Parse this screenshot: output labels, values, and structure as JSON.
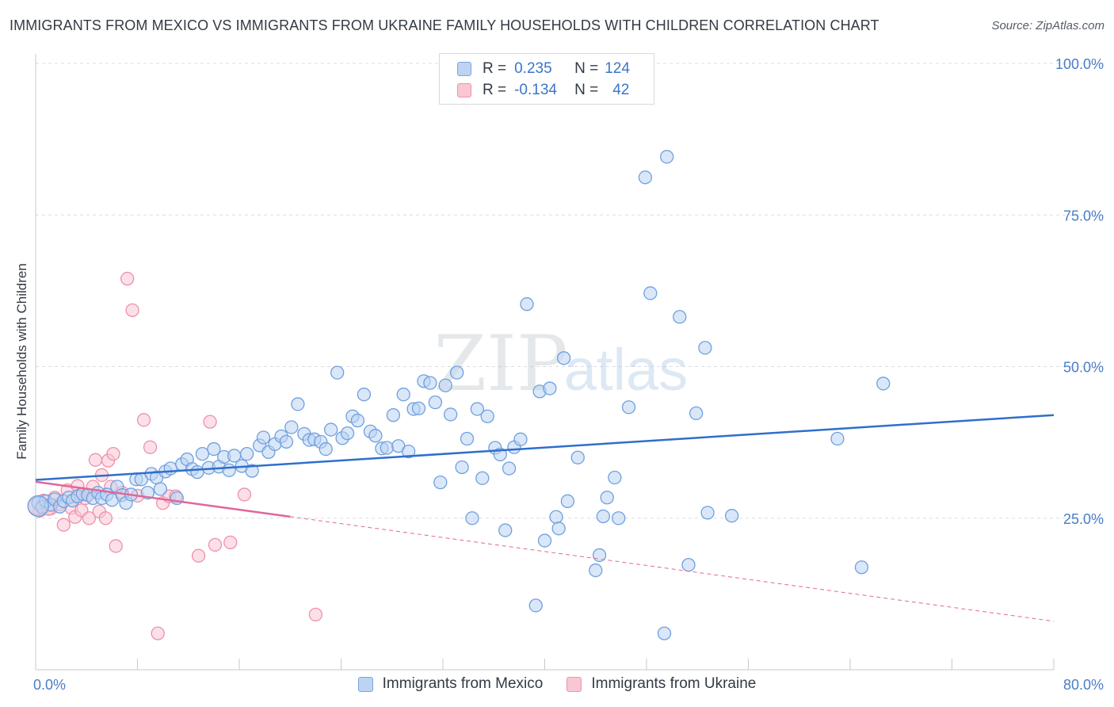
{
  "title": "IMMIGRANTS FROM MEXICO VS IMMIGRANTS FROM UKRAINE FAMILY HOUSEHOLDS WITH CHILDREN CORRELATION CHART",
  "source": "Source: ZipAtlas.com",
  "watermark": {
    "zip": "ZIP",
    "atlas": "atlas"
  },
  "legend_box": {
    "rows": [
      {
        "r_label": "R =",
        "r_value": "0.235",
        "n_label": "N =",
        "n_value": "124"
      },
      {
        "r_label": "R =",
        "r_value": "-0.134",
        "n_label": "N =",
        "n_value": "42"
      }
    ]
  },
  "colors": {
    "mexico_fill": "#bcd3f2",
    "mexico_stroke": "#6fa0de",
    "mexico_line": "#2f6fcb",
    "ukraine_fill": "#f9c6d4",
    "ukraine_stroke": "#ef8fab",
    "ukraine_line": "#e0679a",
    "axis_text": "#4a7cc9",
    "grid": "#d9dde3"
  },
  "chart_data": {
    "type": "scatter",
    "title": "IMMIGRANTS FROM MEXICO VS IMMIGRANTS FROM UKRAINE FAMILY HOUSEHOLDS WITH CHILDREN CORRELATION CHART",
    "xlabel": "",
    "ylabel": "Family Households with Children",
    "xlim": [
      0,
      80
    ],
    "ylim": [
      0,
      100
    ],
    "x_tick_labels": [
      "0.0%",
      "80.0%"
    ],
    "y_ticks": [
      25,
      50,
      75,
      100
    ],
    "y_tick_labels": [
      "25.0%",
      "50.0%",
      "75.0%",
      "100.0%"
    ],
    "grid": true,
    "series": [
      {
        "name": "Immigrants from Mexico",
        "r": 0.235,
        "n": 124,
        "trend": {
          "x": [
            0,
            80
          ],
          "y": [
            31.3,
            42.0
          ],
          "dashed_from": null
        },
        "points": [
          [
            0.2,
            27.5
          ],
          [
            0.5,
            26.8
          ],
          [
            0.8,
            27.8
          ],
          [
            1.2,
            27.2
          ],
          [
            1.5,
            28.1
          ],
          [
            1.9,
            26.9
          ],
          [
            2.2,
            27.8
          ],
          [
            2.6,
            28.4
          ],
          [
            2.9,
            27.9
          ],
          [
            3.3,
            28.6
          ],
          [
            3.7,
            29.0
          ],
          [
            4.1,
            28.8
          ],
          [
            4.5,
            28.3
          ],
          [
            4.9,
            29.2
          ],
          [
            5.2,
            28.3
          ],
          [
            5.6,
            28.9
          ],
          [
            6.0,
            28.0
          ],
          [
            6.4,
            30.2
          ],
          [
            6.8,
            28.8
          ],
          [
            7.1,
            27.5
          ],
          [
            7.5,
            28.9
          ],
          [
            7.9,
            31.4
          ],
          [
            8.3,
            31.4
          ],
          [
            8.8,
            29.2
          ],
          [
            9.1,
            32.3
          ],
          [
            9.5,
            31.7
          ],
          [
            9.8,
            29.8
          ],
          [
            10.2,
            32.7
          ],
          [
            10.6,
            33.2
          ],
          [
            11.1,
            28.3
          ],
          [
            11.5,
            33.9
          ],
          [
            11.9,
            34.7
          ],
          [
            12.3,
            33.1
          ],
          [
            12.7,
            32.6
          ],
          [
            13.1,
            35.6
          ],
          [
            13.6,
            33.3
          ],
          [
            14.0,
            36.4
          ],
          [
            14.4,
            33.5
          ],
          [
            14.8,
            35.1
          ],
          [
            15.2,
            32.9
          ],
          [
            15.6,
            35.3
          ],
          [
            16.2,
            33.6
          ],
          [
            16.6,
            35.6
          ],
          [
            17.0,
            32.8
          ],
          [
            17.6,
            37.0
          ],
          [
            17.9,
            38.3
          ],
          [
            18.3,
            35.9
          ],
          [
            18.8,
            37.2
          ],
          [
            19.3,
            38.5
          ],
          [
            19.7,
            37.6
          ],
          [
            20.1,
            40.0
          ],
          [
            20.6,
            43.8
          ],
          [
            21.1,
            38.9
          ],
          [
            21.5,
            37.9
          ],
          [
            21.9,
            38.0
          ],
          [
            22.4,
            37.6
          ],
          [
            22.8,
            36.4
          ],
          [
            23.2,
            39.6
          ],
          [
            23.7,
            49.0
          ],
          [
            24.1,
            38.2
          ],
          [
            24.5,
            39.0
          ],
          [
            24.9,
            41.8
          ],
          [
            25.3,
            41.1
          ],
          [
            25.8,
            45.4
          ],
          [
            26.3,
            39.3
          ],
          [
            26.7,
            38.6
          ],
          [
            27.2,
            36.5
          ],
          [
            27.6,
            36.6
          ],
          [
            28.1,
            42.0
          ],
          [
            28.5,
            36.9
          ],
          [
            28.9,
            45.4
          ],
          [
            29.3,
            36.0
          ],
          [
            29.7,
            43.0
          ],
          [
            30.1,
            43.1
          ],
          [
            30.5,
            47.6
          ],
          [
            31.0,
            47.3
          ],
          [
            31.4,
            44.1
          ],
          [
            31.8,
            30.9
          ],
          [
            32.2,
            46.9
          ],
          [
            32.6,
            42.1
          ],
          [
            33.1,
            49.0
          ],
          [
            33.5,
            33.4
          ],
          [
            33.9,
            38.1
          ],
          [
            34.3,
            25.0
          ],
          [
            34.7,
            43.0
          ],
          [
            35.1,
            31.6
          ],
          [
            35.5,
            41.8
          ],
          [
            36.1,
            36.6
          ],
          [
            36.5,
            35.5
          ],
          [
            36.9,
            23.0
          ],
          [
            37.2,
            33.2
          ],
          [
            37.6,
            36.7
          ],
          [
            38.1,
            38.0
          ],
          [
            38.6,
            60.3
          ],
          [
            39.3,
            10.6
          ],
          [
            39.6,
            45.9
          ],
          [
            40.0,
            21.3
          ],
          [
            40.4,
            46.4
          ],
          [
            40.9,
            25.2
          ],
          [
            41.1,
            23.3
          ],
          [
            41.5,
            51.4
          ],
          [
            41.8,
            27.8
          ],
          [
            42.6,
            35.0
          ],
          [
            44.0,
            16.4
          ],
          [
            44.3,
            18.9
          ],
          [
            44.6,
            25.3
          ],
          [
            44.9,
            28.4
          ],
          [
            45.5,
            31.7
          ],
          [
            45.8,
            25.0
          ],
          [
            46.6,
            43.3
          ],
          [
            47.9,
            81.2
          ],
          [
            48.3,
            62.1
          ],
          [
            49.4,
            6.0
          ],
          [
            49.6,
            84.6
          ],
          [
            50.6,
            58.2
          ],
          [
            51.3,
            17.3
          ],
          [
            51.9,
            42.3
          ],
          [
            52.6,
            53.1
          ],
          [
            52.8,
            25.9
          ],
          [
            54.7,
            25.4
          ],
          [
            63.0,
            38.1
          ],
          [
            64.9,
            16.9
          ],
          [
            66.6,
            47.2
          ]
        ]
      },
      {
        "name": "Immigrants from Ukraine",
        "r": -0.134,
        "n": 42,
        "trend": {
          "x": [
            0,
            80
          ],
          "y": [
            31.0,
            8.0
          ],
          "dashed_from": 20
        },
        "points": [
          [
            0.3,
            26.2
          ],
          [
            0.6,
            27.9
          ],
          [
            0.9,
            27.1
          ],
          [
            1.2,
            26.6
          ],
          [
            1.5,
            28.4
          ],
          [
            1.9,
            27.3
          ],
          [
            2.2,
            23.9
          ],
          [
            2.5,
            29.6
          ],
          [
            2.8,
            26.7
          ],
          [
            3.1,
            25.2
          ],
          [
            3.3,
            30.3
          ],
          [
            3.5,
            28.8
          ],
          [
            3.6,
            26.3
          ],
          [
            3.9,
            28.3
          ],
          [
            4.2,
            25.0
          ],
          [
            4.5,
            30.2
          ],
          [
            4.7,
            34.6
          ],
          [
            5.0,
            26.1
          ],
          [
            5.2,
            32.1
          ],
          [
            5.5,
            25.0
          ],
          [
            5.7,
            34.5
          ],
          [
            5.9,
            30.2
          ],
          [
            6.1,
            35.6
          ],
          [
            6.3,
            20.4
          ],
          [
            6.8,
            29.2
          ],
          [
            7.2,
            64.5
          ],
          [
            7.6,
            59.3
          ],
          [
            8.0,
            28.7
          ],
          [
            8.5,
            41.2
          ],
          [
            9.0,
            36.7
          ],
          [
            9.6,
            6.0
          ],
          [
            10.0,
            27.5
          ],
          [
            10.5,
            28.6
          ],
          [
            11.0,
            28.6
          ],
          [
            12.8,
            18.8
          ],
          [
            13.7,
            40.9
          ],
          [
            14.1,
            20.6
          ],
          [
            15.3,
            21.0
          ],
          [
            16.4,
            28.9
          ],
          [
            22.0,
            9.1
          ],
          [
            0.5,
            27.0
          ],
          [
            1.0,
            26.5
          ]
        ]
      }
    ]
  },
  "bottom_legend": {
    "mexico": "Immigrants from Mexico",
    "ukraine": "Immigrants from Ukraine"
  }
}
